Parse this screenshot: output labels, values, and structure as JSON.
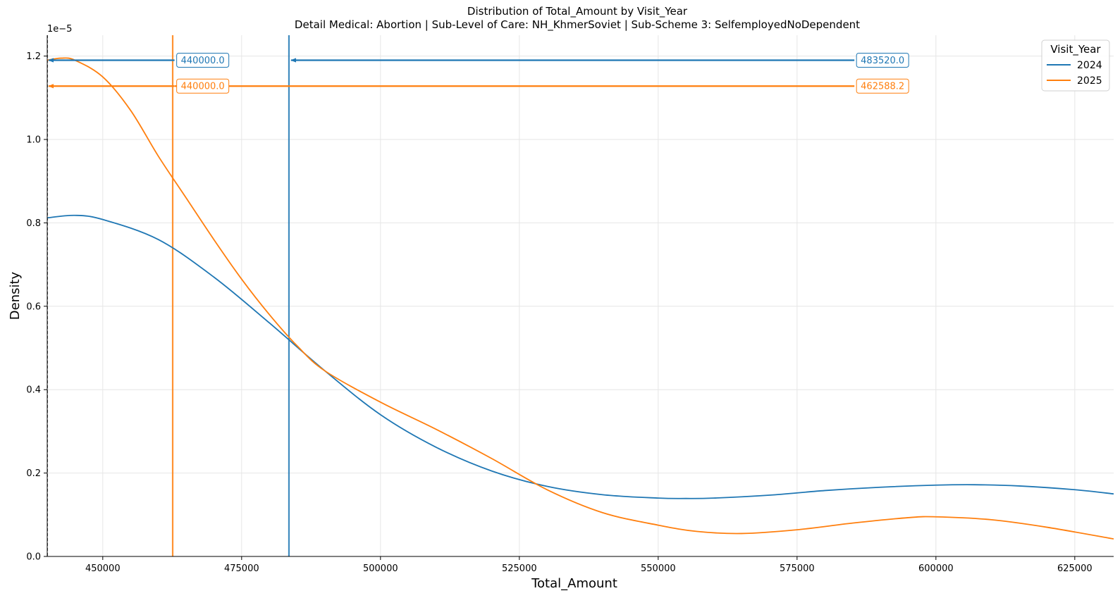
{
  "chart_data": {
    "type": "line",
    "title": "Distribution of Total_Amount by Visit_Year",
    "subtitle": "Detail Medical: Abortion | Sub-Level of Care: NH_KhmerSoviet | Sub-Scheme 3: SelfemployedNoDependent",
    "xlabel": "Total_Amount",
    "ylabel": "Density",
    "y_scale_label": "1e−5",
    "y_scale": 1e-05,
    "xlim": [
      440000,
      632000
    ],
    "ylim": [
      0,
      1.25
    ],
    "xticks": [
      450000,
      475000,
      500000,
      525000,
      550000,
      575000,
      600000,
      625000
    ],
    "xtick_labels": [
      "450000",
      "475000",
      "500000",
      "525000",
      "550000",
      "575000",
      "600000",
      "625000"
    ],
    "yticks": [
      0.0,
      0.2,
      0.4,
      0.6,
      0.8,
      1.0,
      1.2
    ],
    "ytick_labels": [
      "0.0",
      "0.2",
      "0.4",
      "0.6",
      "0.8",
      "1.0",
      "1.2"
    ],
    "grid": true,
    "legend": {
      "title": "Visit_Year",
      "placement": "top-right"
    },
    "series": [
      {
        "name": "2024",
        "color": "#1f77b4",
        "x": [
          440000,
          445000,
          450000,
          460000,
          470000,
          480000,
          490000,
          500000,
          510000,
          520000,
          530000,
          540000,
          550000,
          555000,
          560000,
          570000,
          580000,
          590000,
          600000,
          607000,
          615000,
          625000,
          632000
        ],
        "y": [
          0.812,
          0.818,
          0.808,
          0.76,
          0.67,
          0.56,
          0.445,
          0.34,
          0.262,
          0.205,
          0.168,
          0.148,
          0.14,
          0.139,
          0.14,
          0.147,
          0.158,
          0.166,
          0.171,
          0.172,
          0.169,
          0.16,
          0.15
        ]
      },
      {
        "name": "2025",
        "color": "#ff7f0e",
        "x": [
          440000,
          442500,
          445000,
          450000,
          455000,
          460000,
          465000,
          470000,
          475000,
          480000,
          485000,
          490000,
          500000,
          510000,
          520000,
          530000,
          540000,
          550000,
          557000,
          565000,
          575000,
          585000,
          595000,
          600000,
          610000,
          620000,
          632000
        ],
        "y": [
          1.19,
          1.195,
          1.19,
          1.15,
          1.07,
          0.96,
          0.86,
          0.76,
          0.665,
          0.58,
          0.505,
          0.445,
          0.37,
          0.305,
          0.235,
          0.16,
          0.105,
          0.075,
          0.06,
          0.055,
          0.064,
          0.08,
          0.093,
          0.095,
          0.088,
          0.07,
          0.042
        ]
      }
    ],
    "vlines": [
      {
        "series": "2024",
        "x": 483520,
        "color": "#1f77b4"
      },
      {
        "series": "2025",
        "x": 462588.2,
        "color": "#ff7f0e"
      }
    ],
    "annotations": [
      {
        "series": "2024",
        "color": "#1f77b4",
        "y": 1.19,
        "label_left": "440000.0",
        "label_right": "483520.0",
        "label_left_x": 468000,
        "label_right_x": 590400
      },
      {
        "series": "2025",
        "color": "#ff7f0e",
        "y": 1.128,
        "label_left": "440000.0",
        "label_right": "462588.2",
        "label_left_x": 468000,
        "label_right_x": 590400
      }
    ]
  }
}
